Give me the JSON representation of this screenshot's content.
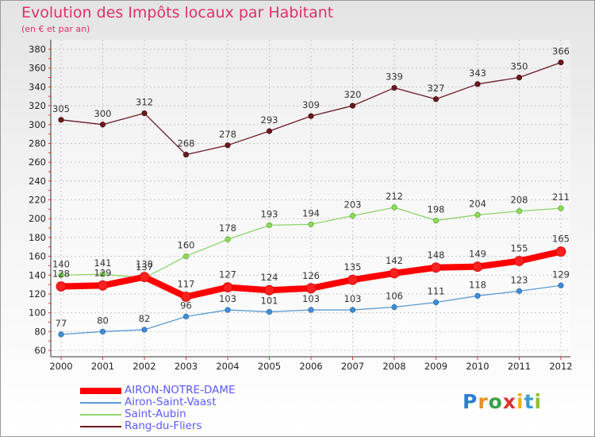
{
  "title": "Evolution des Impôts locaux par Habitant",
  "subtitle": "(en € et par an)",
  "logo": {
    "text": "Proxiti",
    "letters": [
      {
        "ch": "P",
        "color": "#2f7fd0"
      },
      {
        "ch": "r",
        "color": "#e8901c"
      },
      {
        "ch": "o",
        "color": "#3aa04a"
      },
      {
        "ch": "x",
        "color": "#e03030"
      },
      {
        "ch": "i",
        "color": "#f0b020"
      },
      {
        "ch": "t",
        "color": "#3aa0d0"
      },
      {
        "ch": "i",
        "color": "#90c030"
      }
    ]
  },
  "chart_data": {
    "type": "line",
    "x": [
      "2000",
      "2001",
      "2002",
      "2003",
      "2004",
      "2005",
      "2006",
      "2007",
      "2008",
      "2009",
      "2010",
      "2011",
      "2012"
    ],
    "ylim": [
      60,
      380
    ],
    "yticks": [
      "60",
      "80",
      "100",
      "120",
      "140",
      "160",
      "180",
      "200",
      "220",
      "240",
      "260",
      "280",
      "300",
      "320",
      "340",
      "360",
      "380"
    ],
    "grid": true,
    "legend_position": "bottom-left",
    "series": [
      {
        "name": "Rang-du-Fliers",
        "color": "#6b1a22",
        "values": [
          305,
          300,
          312,
          268,
          278,
          293,
          309,
          320,
          339,
          327,
          343,
          350,
          366
        ]
      },
      {
        "name": "Saint-Aubin",
        "color": "#8fd46a",
        "values": [
          140,
          141,
          137,
          160,
          178,
          193,
          194,
          203,
          212,
          198,
          204,
          208,
          211
        ]
      },
      {
        "name": "Airon-Saint-Vaast",
        "color": "#5b9bd5",
        "values": [
          77,
          80,
          82,
          96,
          103,
          101,
          103,
          103,
          106,
          111,
          118,
          123,
          129
        ]
      },
      {
        "name": "AIRON-NOTRE-DAME",
        "color": "#ff0000",
        "values": [
          128,
          129,
          138,
          117,
          127,
          124,
          126,
          135,
          142,
          148,
          149,
          155,
          165
        ]
      }
    ],
    "legend_order": [
      "AIRON-NOTRE-DAME",
      "Airon-Saint-Vaast",
      "Saint-Aubin",
      "Rang-du-Fliers"
    ]
  }
}
